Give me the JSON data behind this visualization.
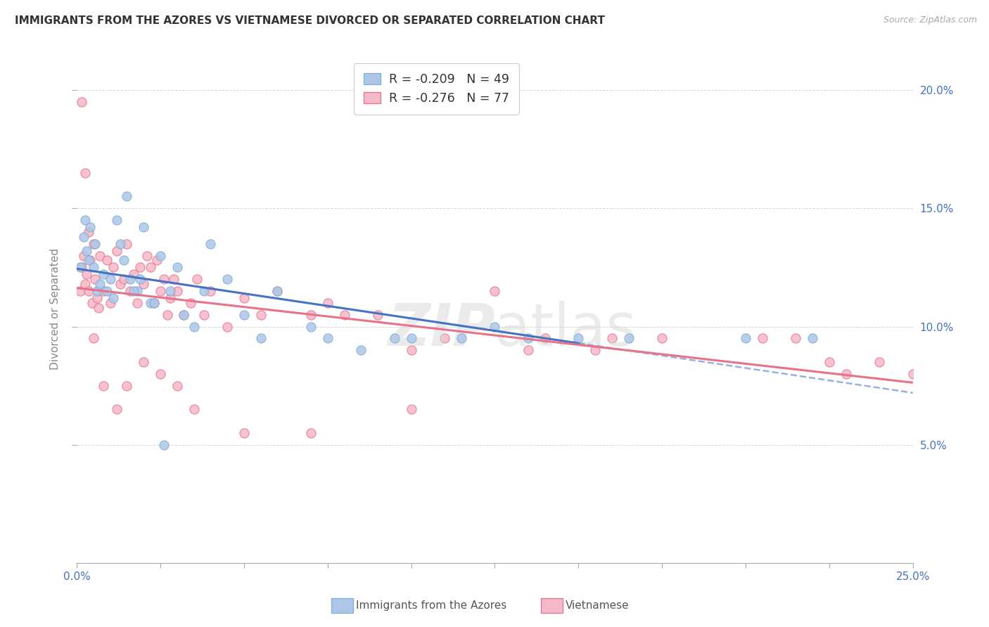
{
  "title": "IMMIGRANTS FROM THE AZORES VS VIETNAMESE DIVORCED OR SEPARATED CORRELATION CHART",
  "source": "Source: ZipAtlas.com",
  "ylabel": "Divorced or Separated",
  "legend_label1": "Immigrants from the Azores",
  "legend_label2": "Vietnamese",
  "legend_r1": "-0.209",
  "legend_n1": "49",
  "legend_r2": "-0.276",
  "legend_n2": "77",
  "color_blue_fill": "#aec6e8",
  "color_blue_edge": "#7bafd4",
  "color_pink_fill": "#f5b8c8",
  "color_pink_edge": "#e8728a",
  "color_blue_line": "#4472c4",
  "color_pink_line": "#e8728a",
  "color_axis_text": "#4472c4",
  "color_grid": "#cccccc",
  "xmin": 0.0,
  "xmax": 25.0,
  "ymin": 0.0,
  "ymax": 21.5,
  "y_ticks": [
    5,
    10,
    15,
    20
  ],
  "blue_x": [
    0.1,
    0.2,
    0.25,
    0.3,
    0.35,
    0.4,
    0.5,
    0.55,
    0.6,
    0.7,
    0.8,
    0.9,
    1.0,
    1.1,
    1.2,
    1.3,
    1.4,
    1.5,
    1.6,
    1.8,
    2.0,
    2.2,
    2.5,
    2.8,
    3.0,
    3.2,
    3.5,
    4.0,
    4.5,
    5.0,
    5.5,
    6.0,
    7.0,
    7.5,
    8.5,
    9.5,
    10.0,
    11.5,
    12.5,
    13.5,
    15.0,
    16.5,
    20.0,
    22.0,
    1.7,
    2.3,
    1.9,
    3.8,
    2.6
  ],
  "blue_y": [
    12.5,
    13.8,
    14.5,
    13.2,
    12.8,
    14.2,
    12.5,
    13.5,
    11.5,
    11.8,
    12.2,
    11.5,
    12.0,
    11.2,
    14.5,
    13.5,
    12.8,
    15.5,
    12.0,
    11.5,
    14.2,
    11.0,
    13.0,
    11.5,
    12.5,
    10.5,
    10.0,
    13.5,
    12.0,
    10.5,
    9.5,
    11.5,
    10.0,
    9.5,
    9.0,
    9.5,
    9.5,
    9.5,
    10.0,
    9.5,
    9.5,
    9.5,
    9.5,
    9.5,
    11.5,
    11.0,
    12.0,
    11.5,
    5.0
  ],
  "pink_x": [
    0.1,
    0.15,
    0.2,
    0.25,
    0.3,
    0.35,
    0.4,
    0.45,
    0.5,
    0.55,
    0.6,
    0.65,
    0.7,
    0.8,
    0.9,
    1.0,
    1.1,
    1.2,
    1.3,
    1.4,
    1.5,
    1.6,
    1.7,
    1.8,
    1.9,
    2.0,
    2.1,
    2.2,
    2.3,
    2.4,
    2.5,
    2.6,
    2.7,
    2.8,
    2.9,
    3.0,
    3.2,
    3.4,
    3.6,
    3.8,
    4.0,
    4.5,
    5.0,
    5.5,
    6.0,
    7.0,
    7.5,
    8.0,
    9.0,
    10.0,
    11.0,
    12.5,
    13.5,
    14.0,
    15.5,
    17.5,
    20.5,
    21.5,
    23.0,
    24.0,
    0.15,
    0.25,
    0.35,
    0.5,
    0.8,
    1.2,
    1.5,
    2.0,
    2.5,
    3.0,
    3.5,
    5.0,
    7.0,
    10.0,
    16.0,
    22.5,
    25.0
  ],
  "pink_y": [
    11.5,
    12.5,
    13.0,
    11.8,
    12.2,
    11.5,
    12.8,
    11.0,
    13.5,
    12.0,
    11.2,
    10.8,
    13.0,
    11.5,
    12.8,
    11.0,
    12.5,
    13.2,
    11.8,
    12.0,
    13.5,
    11.5,
    12.2,
    11.0,
    12.5,
    11.8,
    13.0,
    12.5,
    11.0,
    12.8,
    11.5,
    12.0,
    10.5,
    11.2,
    12.0,
    11.5,
    10.5,
    11.0,
    12.0,
    10.5,
    11.5,
    10.0,
    11.2,
    10.5,
    11.5,
    10.5,
    11.0,
    10.5,
    10.5,
    9.0,
    9.5,
    11.5,
    9.0,
    9.5,
    9.0,
    9.5,
    9.5,
    9.5,
    8.0,
    8.5,
    19.5,
    16.5,
    14.0,
    9.5,
    7.5,
    6.5,
    7.5,
    8.5,
    8.0,
    7.5,
    6.5,
    5.5,
    5.5,
    6.5,
    9.5,
    8.5,
    8.0
  ]
}
